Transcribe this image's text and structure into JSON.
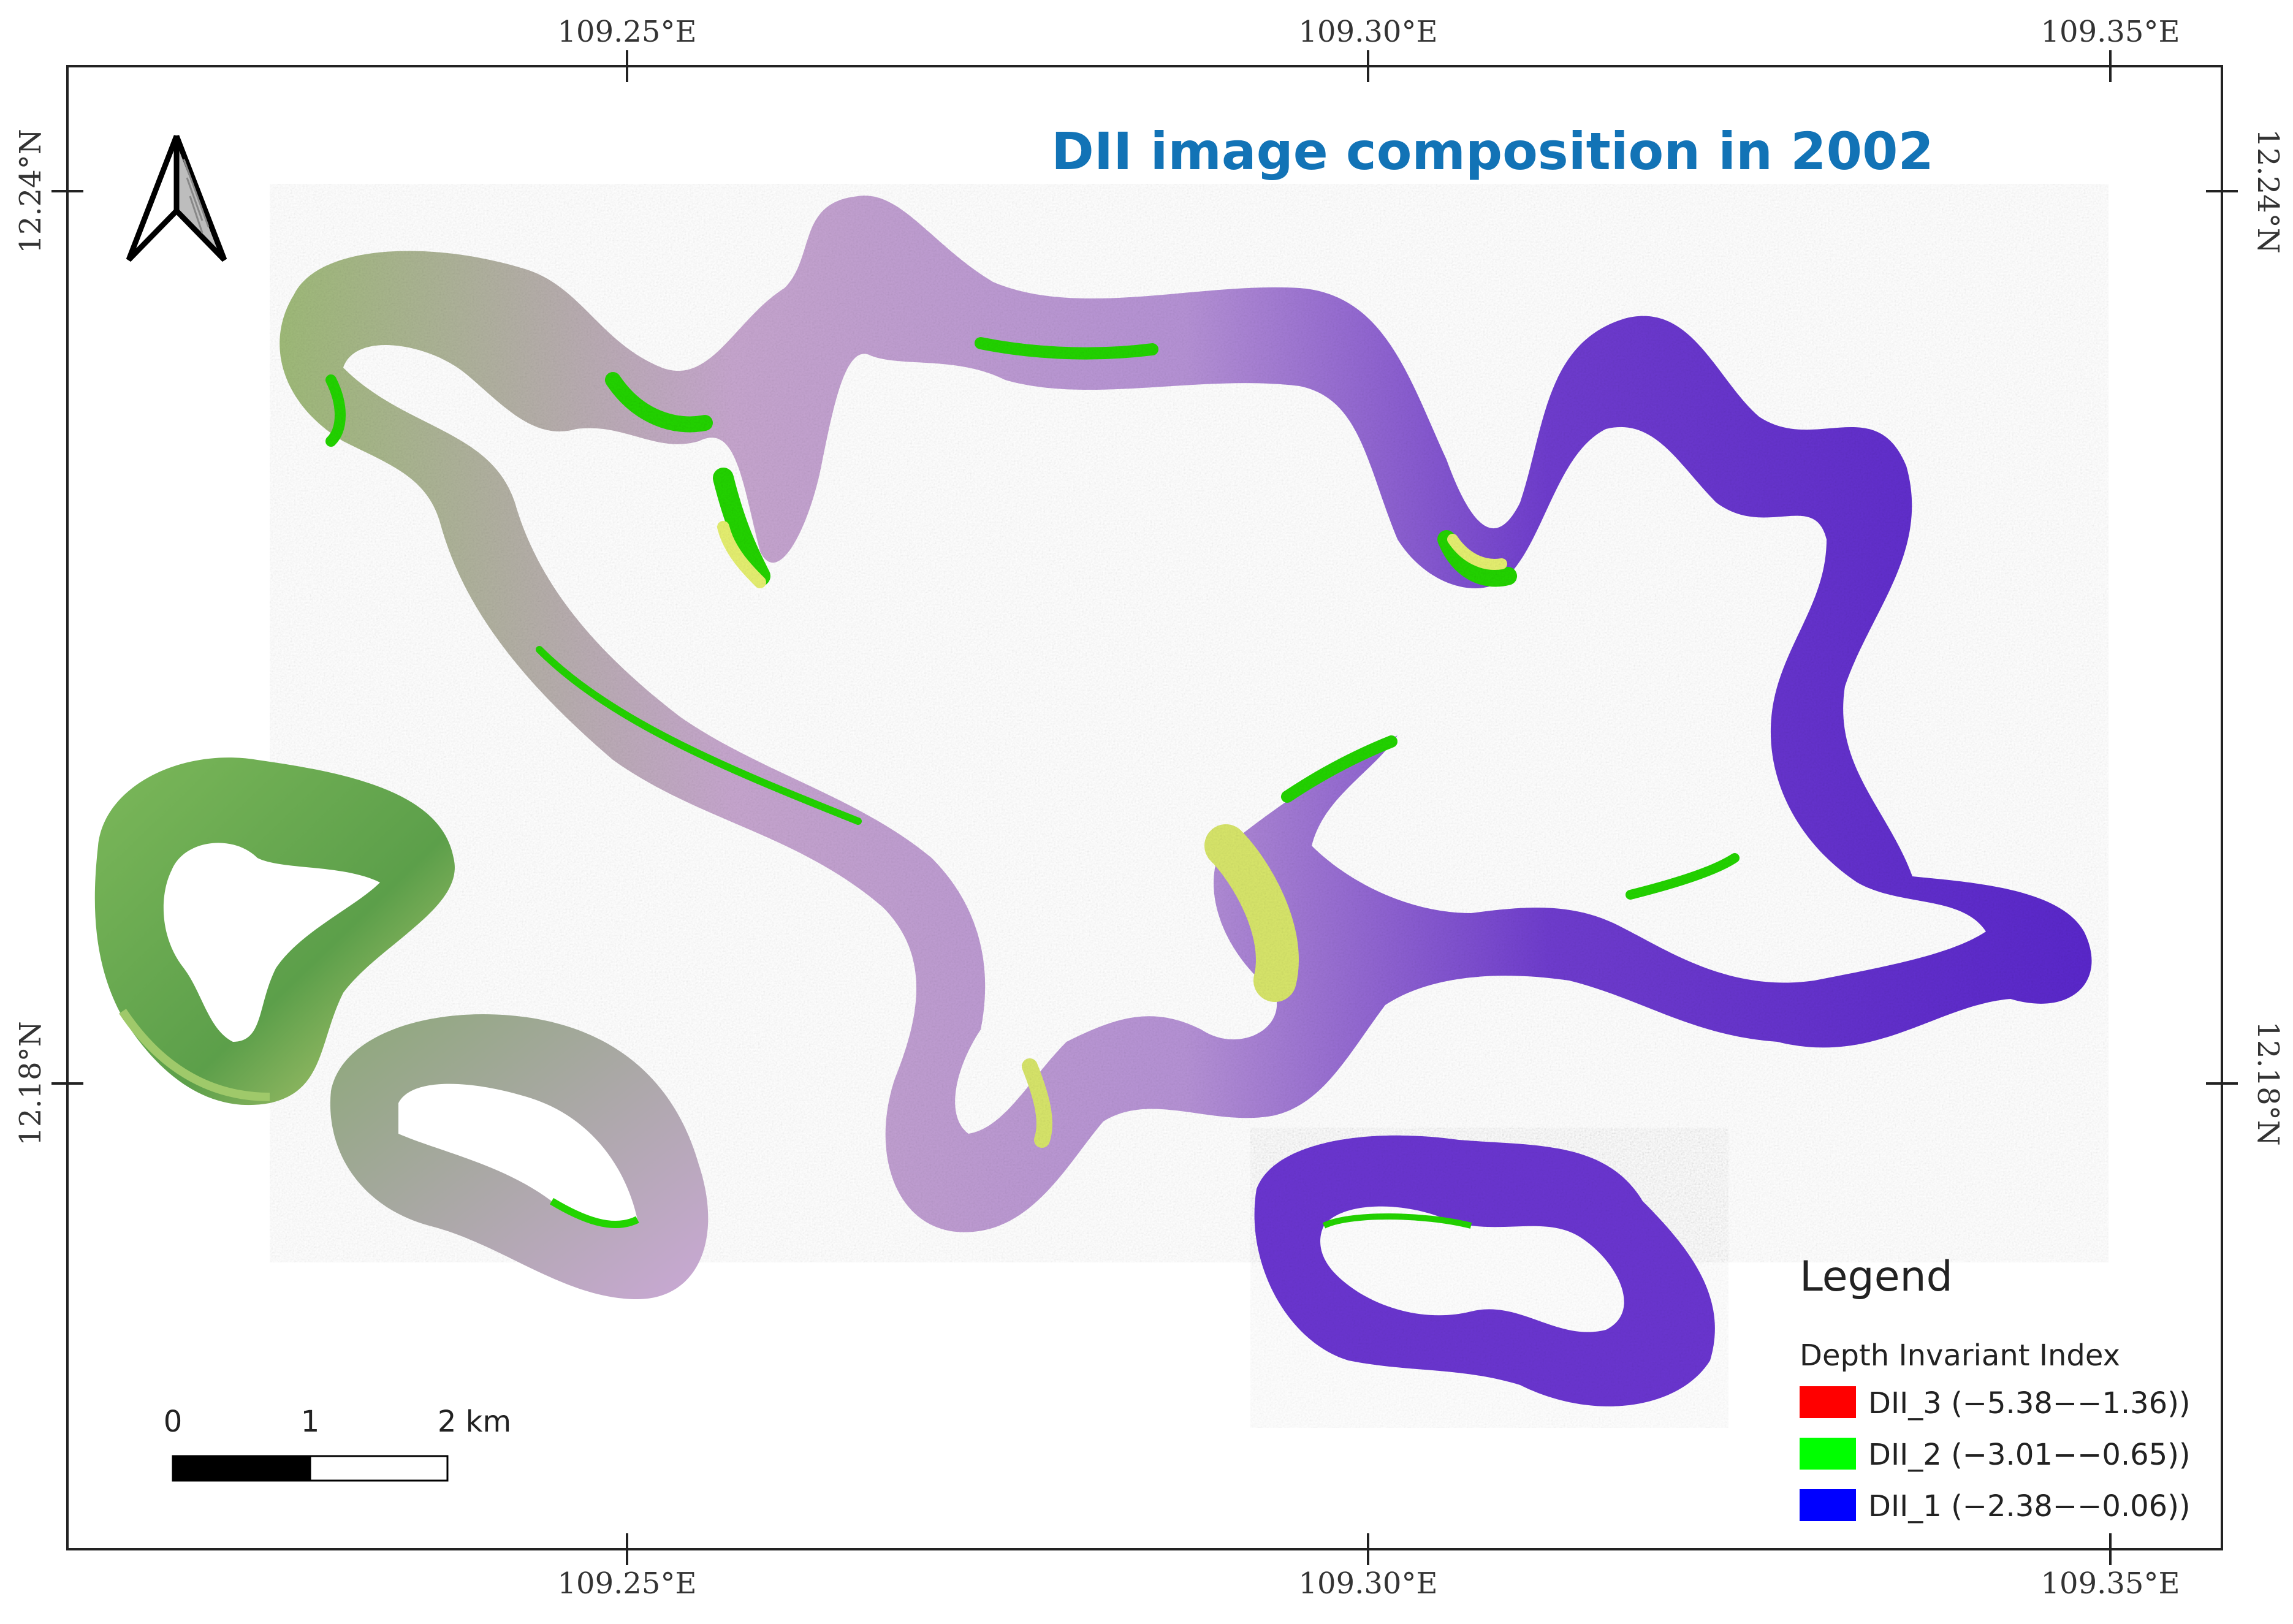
{
  "title": "DII image composition in 2002",
  "axes": {
    "top_ticks": [
      "109.25°E",
      "109.30°E",
      "109.35°E"
    ],
    "bottom_ticks": [
      "109.25°E",
      "109.30°E",
      "109.35°E"
    ],
    "left_ticks": [
      "12.24°N",
      "12.18°N"
    ],
    "right_ticks": [
      "12.24°N",
      "12.18°N"
    ]
  },
  "north_arrow": {
    "icon": "north-arrow-icon"
  },
  "scale_bar": {
    "labels": [
      "0",
      "1",
      "2 km"
    ],
    "segments": [
      {
        "from": 0,
        "to": 1,
        "fill": "#000000"
      },
      {
        "from": 1,
        "to": 2,
        "fill": "#ffffff"
      }
    ]
  },
  "legend": {
    "title": "Legend",
    "subtitle": "Depth Invariant Index",
    "items": [
      {
        "label": "DII_3 (−5.38−−1.36))",
        "color": "#ff0000"
      },
      {
        "label": "DII_2 (−3.01−−0.65))",
        "color": "#00ff00"
      },
      {
        "label": "DII_1 (−2.38−−0.06))",
        "color": "#0000ff"
      }
    ]
  },
  "colors": {
    "title": "#1273b6",
    "reef_green": "#6db34a",
    "reef_pink": "#c9a0d8",
    "reef_purple": "#6a2fd0",
    "reef_yellow": "#e6f070",
    "edge_green": "#22d400"
  }
}
